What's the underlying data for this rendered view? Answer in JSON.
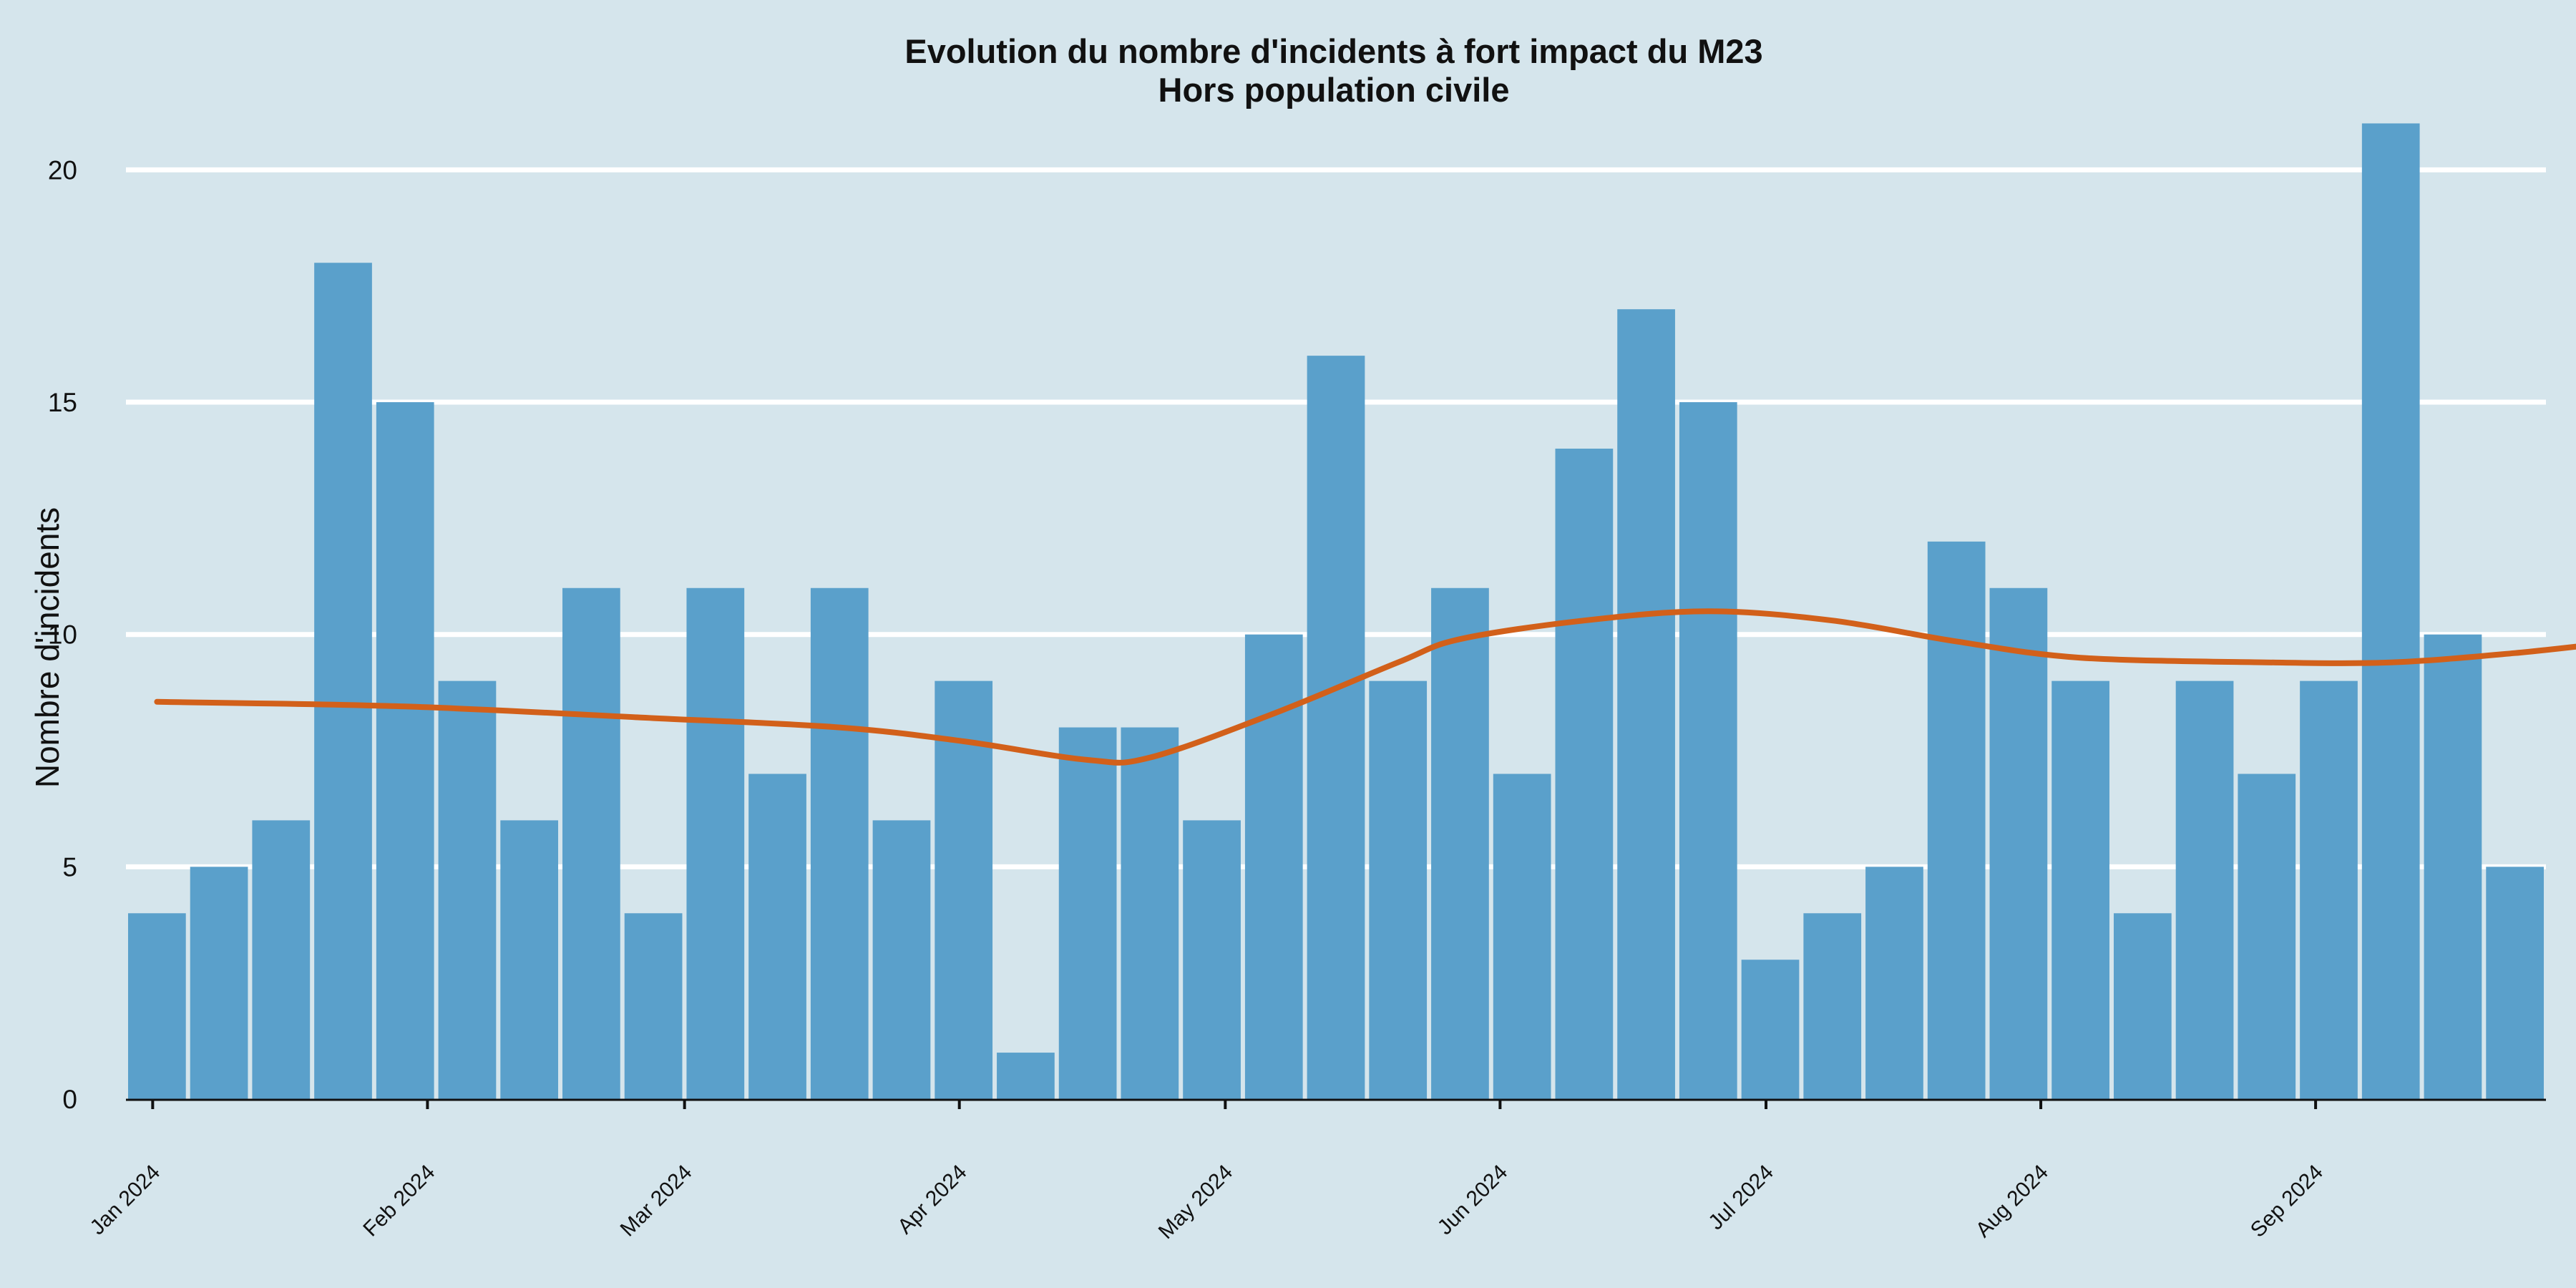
{
  "chart_data": {
    "type": "bar",
    "title": "Evolution du nombre d'incidents à fort impact du M23",
    "subtitle": "Hors population civile",
    "xlabel": "",
    "ylabel": "Nombre d'incidents",
    "ylim": [
      0,
      21.5
    ],
    "yticks": [
      0,
      5,
      10,
      15,
      20
    ],
    "grid": "horizontal",
    "colors": {
      "background": "#d5e5ec",
      "bar": "#5aa0cb",
      "trend": "#d2601a",
      "grid": "#ffffff"
    },
    "x_tick_labels": [
      "Jan 2024",
      "Feb 2024",
      "Mar 2024",
      "Apr 2024",
      "May 2024",
      "Jun 2024",
      "Jul 2024",
      "Aug 2024",
      "Sep 2024"
    ],
    "x_tick_dates": [
      "2024-01-01",
      "2024-02-01",
      "2024-03-01",
      "2024-04-01",
      "2024-05-01",
      "2024-06-01",
      "2024-07-01",
      "2024-08-01",
      "2024-09-01"
    ],
    "x": [
      "2024-01-01",
      "2024-01-08",
      "2024-01-15",
      "2024-01-22",
      "2024-01-29",
      "2024-02-05",
      "2024-02-12",
      "2024-02-19",
      "2024-02-26",
      "2024-03-04",
      "2024-03-11",
      "2024-03-18",
      "2024-03-25",
      "2024-04-01",
      "2024-04-08",
      "2024-04-15",
      "2024-04-22",
      "2024-04-29",
      "2024-05-06",
      "2024-05-13",
      "2024-05-20",
      "2024-05-27",
      "2024-06-03",
      "2024-06-10",
      "2024-06-17",
      "2024-06-24",
      "2024-07-01",
      "2024-07-08",
      "2024-07-15",
      "2024-07-22",
      "2024-07-29",
      "2024-08-05",
      "2024-08-12",
      "2024-08-19",
      "2024-08-26",
      "2024-09-02",
      "2024-09-09",
      "2024-09-16",
      "2024-09-23"
    ],
    "values": [
      4,
      5,
      6,
      18,
      15,
      9,
      6,
      11,
      4,
      11,
      7,
      11,
      6,
      9,
      1,
      8,
      8,
      6,
      10,
      16,
      9,
      11,
      7,
      14,
      17,
      15,
      3,
      4,
      5,
      12,
      11,
      9,
      4,
      9,
      7,
      9,
      21,
      10,
      5
    ],
    "trend": [
      {
        "x": "2024-01-01",
        "y": 8.55
      },
      {
        "x": "2024-01-29",
        "y": 8.45
      },
      {
        "x": "2024-02-26",
        "y": 8.2
      },
      {
        "x": "2024-03-18",
        "y": 8.0
      },
      {
        "x": "2024-04-01",
        "y": 7.7
      },
      {
        "x": "2024-04-15",
        "y": 7.3
      },
      {
        "x": "2024-04-22",
        "y": 7.35
      },
      {
        "x": "2024-05-06",
        "y": 8.3
      },
      {
        "x": "2024-05-20",
        "y": 9.4
      },
      {
        "x": "2024-05-27",
        "y": 9.9
      },
      {
        "x": "2024-06-10",
        "y": 10.3
      },
      {
        "x": "2024-06-24",
        "y": 10.5
      },
      {
        "x": "2024-07-08",
        "y": 10.3
      },
      {
        "x": "2024-07-22",
        "y": 9.85
      },
      {
        "x": "2024-08-05",
        "y": 9.5
      },
      {
        "x": "2024-08-26",
        "y": 9.4
      },
      {
        "x": "2024-09-09",
        "y": 9.4
      },
      {
        "x": "2024-09-23",
        "y": 9.6
      },
      {
        "x": "2024-10-05",
        "y": 9.85
      }
    ]
  }
}
